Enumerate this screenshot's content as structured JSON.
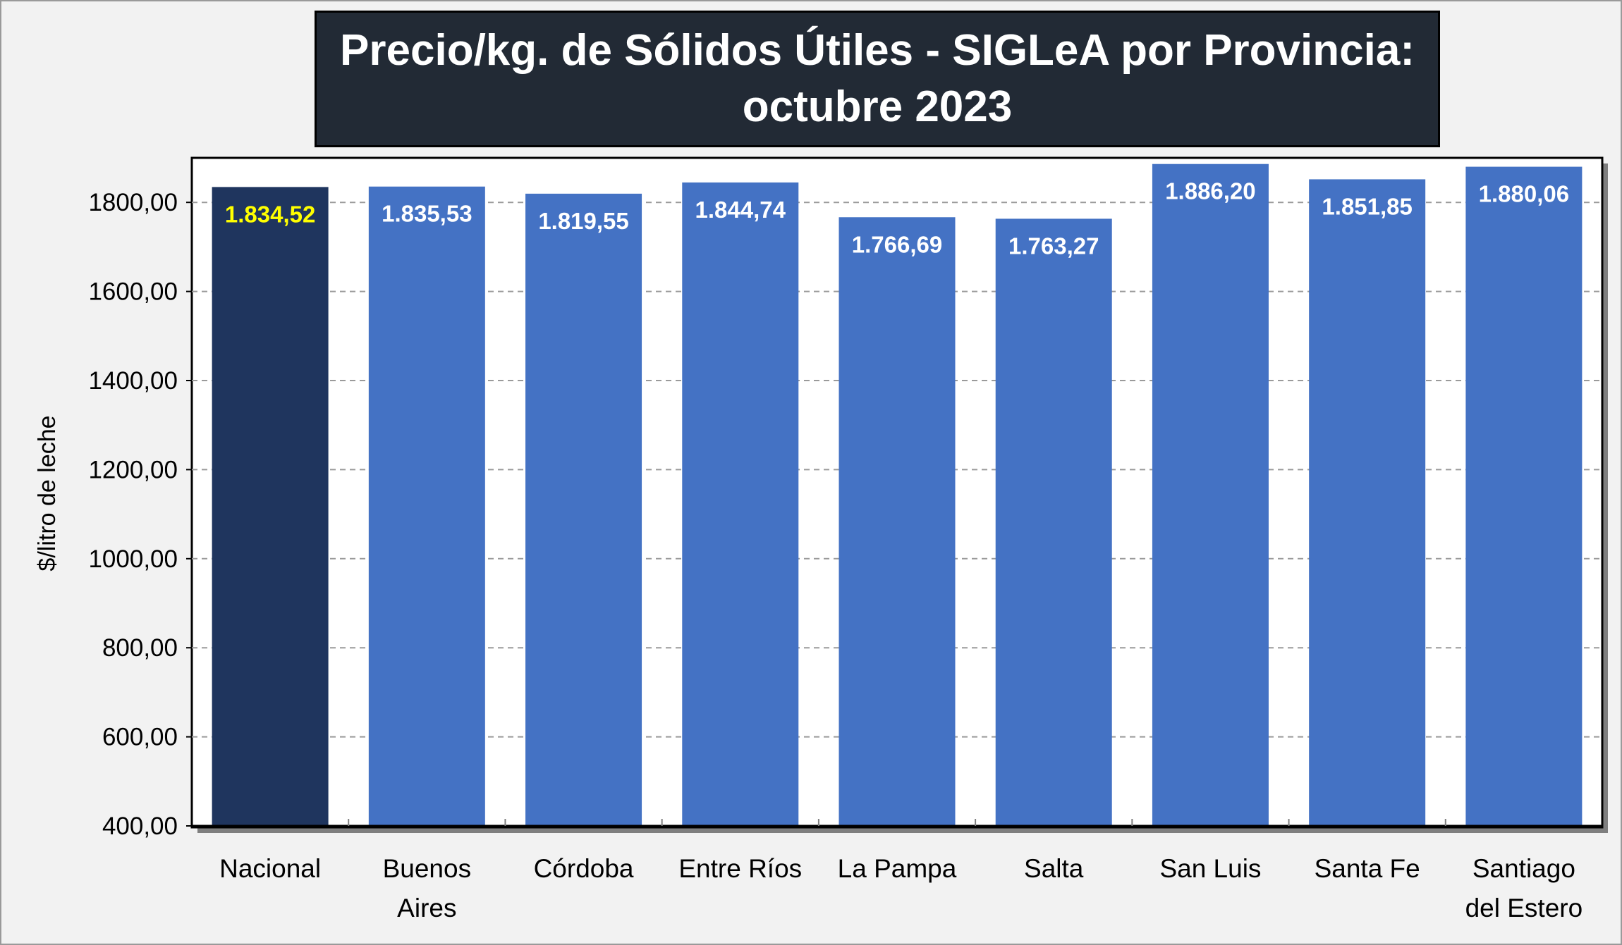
{
  "chart_data": {
    "type": "bar",
    "title_lines": [
      "Precio/kg. de Sólidos Útiles - SIGLeA por Provincia:",
      "octubre 2023"
    ],
    "ylabel": "$/litro de leche",
    "xlabel": "",
    "ylim": [
      400,
      1900
    ],
    "yticks": [
      400,
      600,
      800,
      1000,
      1200,
      1400,
      1600,
      1800
    ],
    "ytick_labels": [
      "400,00",
      "600,00",
      "800,00",
      "1000,00",
      "1200,00",
      "1400,00",
      "1600,00",
      "1800,00"
    ],
    "grid": "horizontal dashed",
    "categories": [
      [
        "Nacional"
      ],
      [
        "Buenos",
        "Aires"
      ],
      [
        "Córdoba"
      ],
      [
        "Entre Ríos"
      ],
      [
        "La Pampa"
      ],
      [
        "Salta"
      ],
      [
        "San Luis"
      ],
      [
        "Santa Fe"
      ],
      [
        "Santiago",
        "del Estero"
      ]
    ],
    "values": [
      1834.52,
      1835.53,
      1819.55,
      1844.74,
      1766.69,
      1763.27,
      1886.2,
      1851.85,
      1880.06
    ],
    "value_labels": [
      "1.834,52",
      "1.835,53",
      "1.819,55",
      "1.844,74",
      "1.766,69",
      "1.763,27",
      "1.886,20",
      "1.851,85",
      "1.880,06"
    ],
    "colors": {
      "highlight_bar": "#1f355e",
      "bar": "#4472c4",
      "highlight_label": "#ffff00",
      "label": "#ffffff",
      "title_bg": "#222a35",
      "title_text": "#ffffff",
      "background": "#f2f2f2",
      "plot_bg": "#ffffff",
      "grid": "#9a9a9a"
    },
    "highlight_index": 0
  }
}
